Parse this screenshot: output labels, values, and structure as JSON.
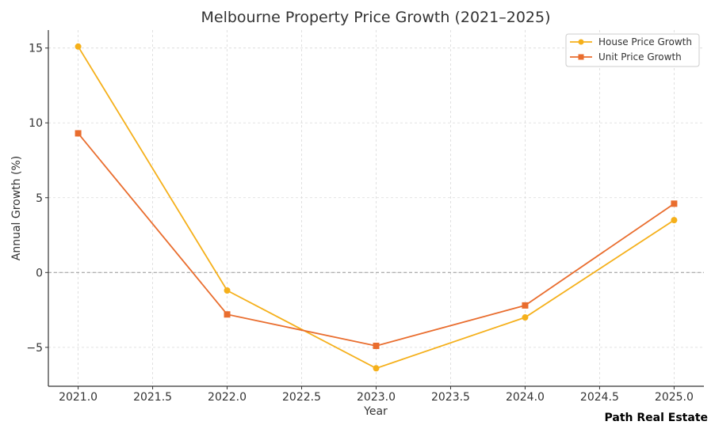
{
  "chart_data": {
    "type": "line",
    "title": "Melbourne Property Price Growth (2021–2025)",
    "xlabel": "Year",
    "ylabel": "Annual Growth (%)",
    "x": [
      2021,
      2022,
      2023,
      2024,
      2025
    ],
    "xlim": [
      2020.8,
      2025.2
    ],
    "ylim": [
      -7.6,
      16.2
    ],
    "xticks": [
      2021.0,
      2021.5,
      2022.0,
      2022.5,
      2023.0,
      2023.5,
      2024.0,
      2024.5,
      2025.0
    ],
    "xtick_labels": [
      "2021.0",
      "2021.5",
      "2022.0",
      "2022.5",
      "2023.0",
      "2023.5",
      "2024.0",
      "2024.5",
      "2025.0"
    ],
    "yticks": [
      -5,
      0,
      5,
      10,
      15
    ],
    "ytick_labels": [
      "−5",
      "0",
      "5",
      "10",
      "15"
    ],
    "grid": true,
    "zero_line": true,
    "legend_position": "top-right",
    "series": [
      {
        "name": "House Price Growth",
        "values": [
          15.1,
          -1.2,
          -6.4,
          -3.0,
          3.5
        ],
        "color": "#F5B01B",
        "marker": "circle"
      },
      {
        "name": "Unit Price Growth",
        "values": [
          9.3,
          -2.8,
          -4.9,
          -2.2,
          4.6
        ],
        "color": "#E96D2E",
        "marker": "square"
      }
    ],
    "annotation": "Path Real Estate"
  }
}
